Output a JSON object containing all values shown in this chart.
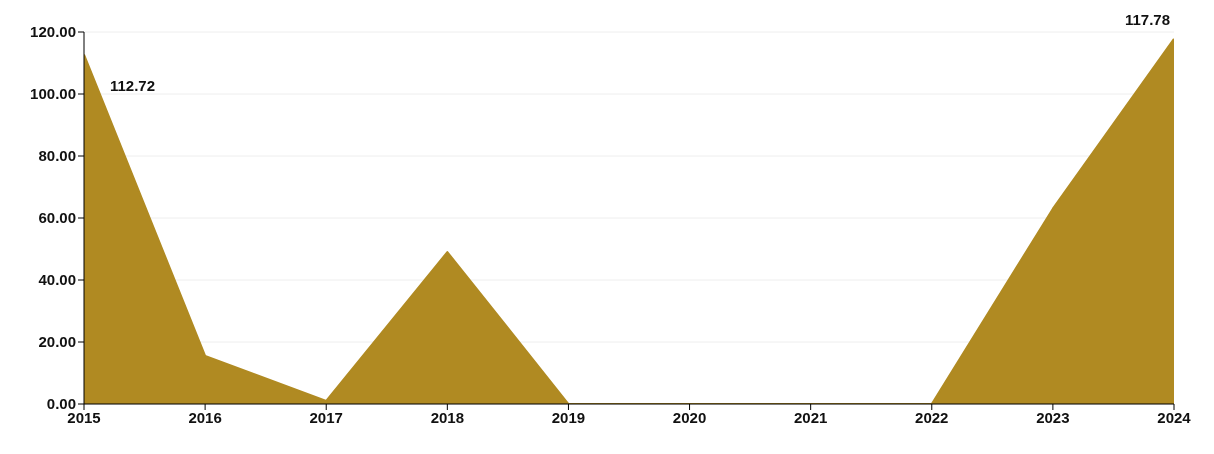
{
  "chart_data": {
    "type": "area",
    "x": [
      2015,
      2016,
      2017,
      2018,
      2019,
      2020,
      2021,
      2022,
      2023,
      2024
    ],
    "values": [
      112.72,
      15.5,
      1,
      49,
      0,
      0,
      0,
      0,
      63,
      117.78
    ],
    "value_labels": [
      "112.72",
      null,
      null,
      null,
      null,
      null,
      null,
      null,
      null,
      "117.78"
    ],
    "color": "#b08a22",
    "xlim": [
      2015,
      2024
    ],
    "xticks": [
      2015,
      2016,
      2017,
      2018,
      2019,
      2020,
      2021,
      2022,
      2023,
      2024
    ],
    "ylim": [
      0,
      120
    ],
    "yticks": [
      {
        "value": 0,
        "label": "0.00"
      },
      {
        "value": 20,
        "label": "20.00"
      },
      {
        "value": 40,
        "label": "40.00"
      },
      {
        "value": 60,
        "label": "60.00"
      },
      {
        "value": 80,
        "label": "80.00"
      },
      {
        "value": 100,
        "label": "100.00"
      },
      {
        "value": 120,
        "label": "120.00"
      }
    ],
    "grid": "y"
  }
}
